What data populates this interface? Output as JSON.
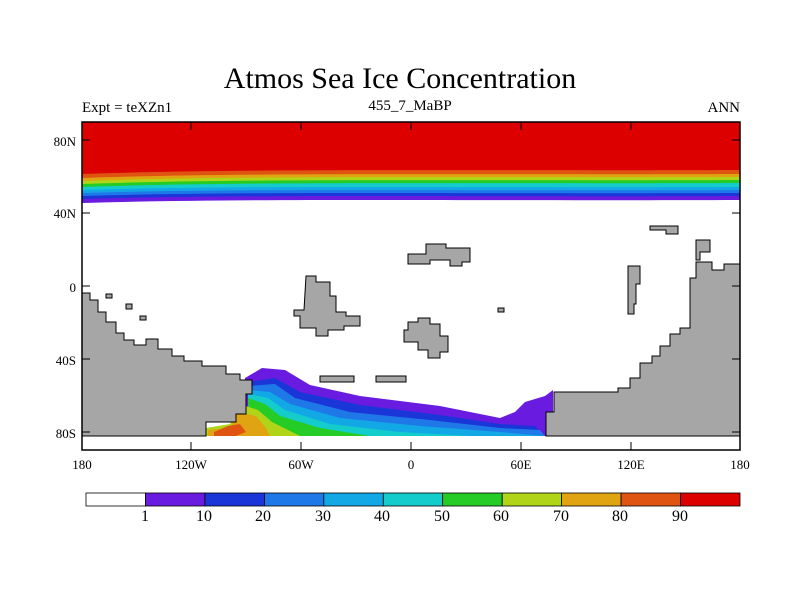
{
  "title": "Atmos Sea Ice Concentration",
  "subtitle_left": "Expt = teXZn1",
  "subtitle_center": "455_7_MaBP",
  "subtitle_right": "ANN",
  "y_ticks": [
    "80N",
    "40N",
    "0",
    "40S",
    "80S"
  ],
  "x_ticks": [
    "180",
    "120W",
    "60W",
    "0",
    "60E",
    "120E",
    "180"
  ],
  "colorbar": {
    "labels": [
      "1",
      "10",
      "20",
      "30",
      "40",
      "50",
      "60",
      "70",
      "80",
      "90"
    ],
    "colors": [
      "#ffffff",
      "#6a1be0",
      "#1a35d8",
      "#1f78e8",
      "#12a8e6",
      "#14cccc",
      "#26cc26",
      "#b0d418",
      "#e0a412",
      "#e05412",
      "#dd0000"
    ]
  },
  "colors": {
    "land": "#a6a6a6",
    "ocean": "#ffffff",
    "ice_max": "#dd0000"
  }
}
